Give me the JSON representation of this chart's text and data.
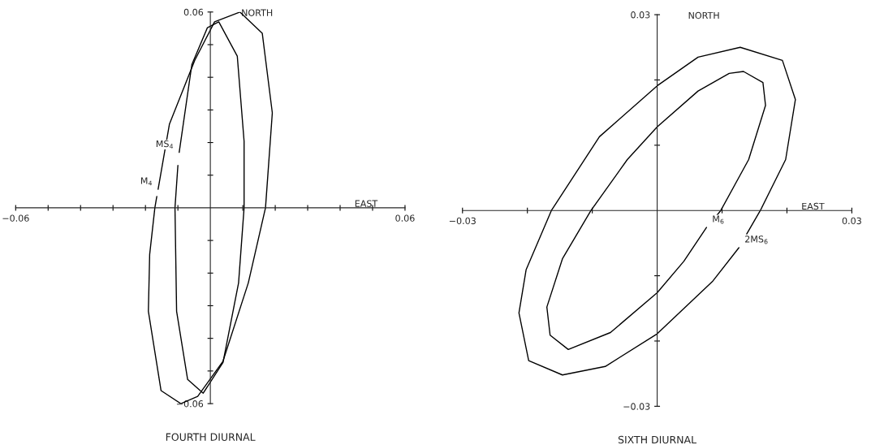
{
  "chart_data": [
    {
      "type": "line",
      "title": "FOURTH DIURNAL",
      "xlabel": "EAST",
      "ylabel": "NORTH",
      "xlim": [
        -0.06,
        0.06
      ],
      "ylim": [
        -0.06,
        0.06
      ],
      "xticks": [
        {
          "value": -0.06,
          "label": "−0.06"
        },
        {
          "value": -0.05,
          "label": null
        },
        {
          "value": -0.04,
          "label": null
        },
        {
          "value": -0.03,
          "label": null
        },
        {
          "value": -0.02,
          "label": null
        },
        {
          "value": -0.01,
          "label": null
        },
        {
          "value": 0.01,
          "label": null
        },
        {
          "value": 0.02,
          "label": null
        },
        {
          "value": 0.03,
          "label": null
        },
        {
          "value": 0.04,
          "label": null
        },
        {
          "value": 0.05,
          "label": null
        },
        0.06
      ],
      "yticks": [
        {
          "value": -0.06,
          "label": "−0.06"
        },
        {
          "value": -0.05,
          "label": null
        },
        {
          "value": -0.04,
          "label": null
        },
        {
          "value": -0.03,
          "label": null
        },
        {
          "value": -0.02,
          "label": null
        },
        {
          "value": -0.01,
          "label": null
        },
        {
          "value": 0.01,
          "label": null
        },
        {
          "value": 0.02,
          "label": null
        },
        {
          "value": 0.03,
          "label": null
        },
        {
          "value": 0.04,
          "label": null
        },
        {
          "value": 0.05,
          "label": null
        },
        0.06
      ],
      "grid": false,
      "legend": false,
      "series": [
        {
          "name": "M$_{4}$",
          "color": "#000000",
          "x": [
            -0.0161,
            -0.0126,
            -0.0048,
            0.0013,
            0.0091,
            0.016,
            0.0191,
            0.017,
            0.0117,
            0.0039,
            -0.0039,
            -0.0091,
            -0.0152,
            -0.0191,
            -0.0187,
            -0.0171,
            -0.0165
          ],
          "values": [
            0.0057,
            0.0257,
            0.0452,
            0.057,
            0.06,
            0.0535,
            0.0291,
            0,
            -0.023,
            -0.047,
            -0.0578,
            -0.06,
            -0.056,
            -0.0317,
            -0.0143,
            0,
            0.0035
          ]
        },
        {
          "name": "MS$_{4}$",
          "color": "#000000",
          "x": [
            -0.0096,
            -0.0057,
            -0.0009,
            0.0026,
            0.0083,
            0.0104,
            0.0104,
            0.0087,
            0.0039,
            -0.0022,
            -0.007,
            -0.0104,
            -0.0109,
            -0.01
          ],
          "values": [
            0.017,
            0.0439,
            0.0552,
            0.057,
            0.0465,
            0.0204,
            0,
            -0.023,
            -0.0474,
            -0.0568,
            -0.0526,
            -0.0317,
            0,
            0.013
          ]
        }
      ]
    },
    {
      "type": "line",
      "title": "SIXTH DIURNAL",
      "xlabel": "EAST",
      "ylabel": "NORTH",
      "xlim": [
        -0.03,
        0.03
      ],
      "ylim": [
        -0.03,
        0.03
      ],
      "xticks": [
        {
          "value": -0.03,
          "label": "−0.03"
        },
        {
          "value": -0.02,
          "label": null
        },
        {
          "value": -0.01,
          "label": null
        },
        {
          "value": 0.01,
          "label": null
        },
        {
          "value": 0.02,
          "label": null
        },
        0.03
      ],
      "yticks": [
        {
          "value": -0.03,
          "label": "−0.03"
        },
        {
          "value": -0.02,
          "label": null
        },
        {
          "value": -0.01,
          "label": null
        },
        {
          "value": 0.01,
          "label": null
        },
        {
          "value": 0.02,
          "label": null
        },
        0.03
      ],
      "grid": false,
      "legend": false,
      "series": [
        {
          "name": "M$_{6}$",
          "color": "#000000",
          "x": [
            0.0076,
            0.0041,
            0,
            -0.0072,
            -0.0137,
            -0.0165,
            -0.017,
            -0.0146,
            -0.0102,
            -0.0046,
            0,
            0.0063,
            0.0111,
            0.0133,
            0.0163,
            0.0167,
            0.0141,
            0.0098,
            0.0085
          ],
          "values": [
            -0.0026,
            -0.0078,
            -0.0126,
            -0.0187,
            -0.0213,
            -0.0191,
            -0.0148,
            -0.0074,
            0,
            0.0078,
            0.0128,
            0.0183,
            0.021,
            0.0213,
            0.0196,
            0.0161,
            0.0078,
            0,
            -0.0016
          ]
        },
        {
          "name": "2MS$_{6}$",
          "color": "#000000",
          "x": [
            0.0126,
            0.0085,
            0,
            -0.008,
            -0.0146,
            -0.0198,
            -0.0213,
            -0.0202,
            -0.0163,
            -0.0089,
            0,
            0.0063,
            0.0128,
            0.0193,
            0.0213,
            0.0198,
            0.0159,
            0.0138
          ],
          "values": [
            -0.0057,
            -0.0109,
            -0.0189,
            -0.0239,
            -0.0252,
            -0.023,
            -0.0157,
            -0.0091,
            0,
            0.0113,
            0.0191,
            0.0235,
            0.025,
            0.023,
            0.017,
            0.0078,
            0,
            -0.0036
          ]
        }
      ]
    }
  ]
}
